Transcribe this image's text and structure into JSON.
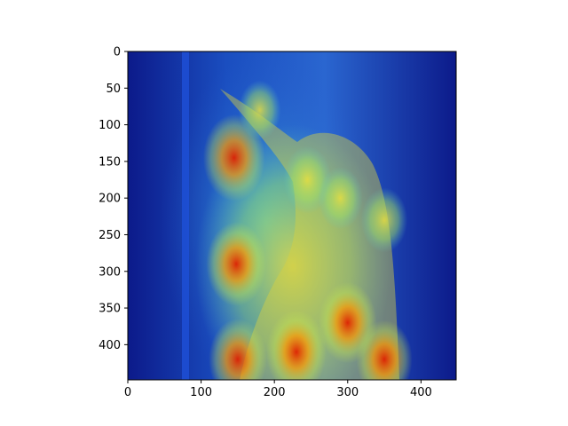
{
  "chart_data": {
    "type": "heatmap",
    "title": "",
    "xlabel": "",
    "ylabel": "",
    "xlim": [
      0,
      448
    ],
    "ylim": [
      448,
      0
    ],
    "x_ticks": [
      0,
      100,
      200,
      300,
      400
    ],
    "y_ticks": [
      0,
      50,
      100,
      150,
      200,
      250,
      300,
      350,
      400
    ],
    "colormap": "jet",
    "underlying_image": "woodpecker photo with saliency heatmap overlay",
    "hotspots": [
      {
        "x": 145,
        "y": 145,
        "intensity": 0.95
      },
      {
        "x": 148,
        "y": 290,
        "intensity": 0.9
      },
      {
        "x": 150,
        "y": 420,
        "intensity": 0.85
      },
      {
        "x": 230,
        "y": 410,
        "intensity": 0.9
      },
      {
        "x": 300,
        "y": 370,
        "intensity": 0.85
      },
      {
        "x": 350,
        "y": 420,
        "intensity": 0.8
      },
      {
        "x": 245,
        "y": 175,
        "intensity": 0.6
      },
      {
        "x": 350,
        "y": 230,
        "intensity": 0.55
      },
      {
        "x": 290,
        "y": 200,
        "intensity": 0.5
      },
      {
        "x": 180,
        "y": 80,
        "intensity": 0.45
      }
    ],
    "colors": {
      "jet_low": "#00007f",
      "jet_mid": "#7fff7f",
      "jet_high": "#ff0000",
      "axis": "#000000"
    }
  }
}
